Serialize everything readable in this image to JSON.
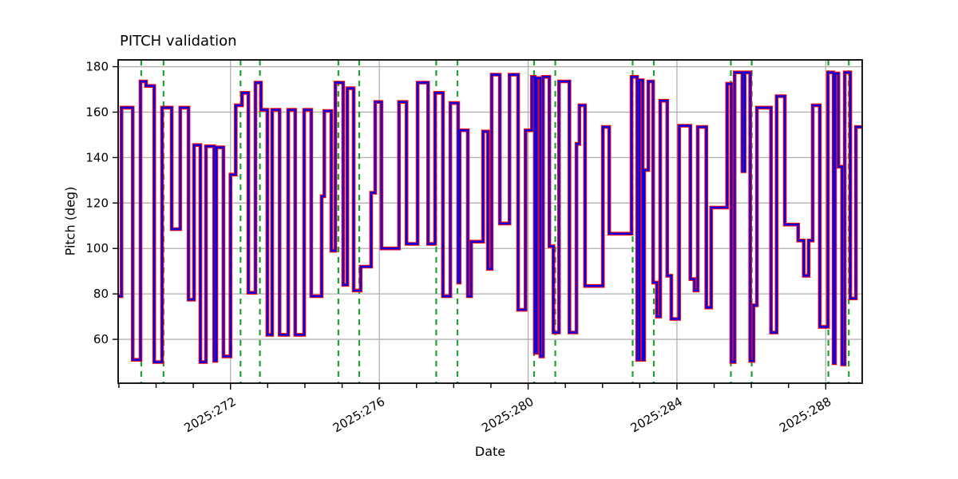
{
  "chart_data": {
    "type": "line",
    "subtype": "step",
    "title": "PITCH validation",
    "xlabel": "Date",
    "ylabel": "Pitch (deg)",
    "x_unit": "2025 day-of-year",
    "xlim": [
      268.98,
      288.98
    ],
    "ylim": [
      40.7,
      183.0
    ],
    "grid": true,
    "legend": "none",
    "x_major_ticks": [
      272,
      276,
      280,
      284,
      288
    ],
    "x_major_tick_labels": [
      "2025:272",
      "2025:276",
      "2025:280",
      "2025:284",
      "2025:288"
    ],
    "x_minor_tick_step": 1,
    "x_tick_label_rotation_deg": 30,
    "y_ticks": [
      60,
      80,
      100,
      120,
      140,
      160,
      180
    ],
    "colors": {
      "grid": "#b0b0b0",
      "frame": "#000000",
      "red_series": "#ff0000",
      "blue_series": "#0000ee",
      "event_marker": "#22a038"
    },
    "series": [
      {
        "id": "red-under",
        "color": "#ff0000",
        "linewidth": 4.6
      },
      {
        "id": "blue-over",
        "color": "#0000ee",
        "linewidth": 2.4
      }
    ],
    "note": "blue series overlays red series with nearly identical values (red visible as outline)",
    "x_end": 288.98,
    "steps": [
      [
        268.98,
        79
      ],
      [
        269.07,
        162
      ],
      [
        269.37,
        51
      ],
      [
        269.58,
        173.5
      ],
      [
        269.73,
        171.5
      ],
      [
        269.95,
        50
      ],
      [
        270.16,
        162
      ],
      [
        270.42,
        108.5
      ],
      [
        270.65,
        162
      ],
      [
        270.87,
        77.5
      ],
      [
        271.02,
        145.5
      ],
      [
        271.19,
        50
      ],
      [
        271.34,
        145
      ],
      [
        271.56,
        50.5
      ],
      [
        271.62,
        144.5
      ],
      [
        271.81,
        52.5
      ],
      [
        272.0,
        132.5
      ],
      [
        272.14,
        163
      ],
      [
        272.31,
        168.5
      ],
      [
        272.48,
        80.5
      ],
      [
        272.67,
        173
      ],
      [
        272.82,
        161
      ],
      [
        272.99,
        62
      ],
      [
        273.12,
        161
      ],
      [
        273.32,
        62
      ],
      [
        273.55,
        161
      ],
      [
        273.74,
        62
      ],
      [
        273.98,
        161
      ],
      [
        274.17,
        79
      ],
      [
        274.45,
        123
      ],
      [
        274.52,
        160.5
      ],
      [
        274.71,
        99
      ],
      [
        274.82,
        173
      ],
      [
        275.03,
        84
      ],
      [
        275.14,
        170.5
      ],
      [
        275.31,
        81.5
      ],
      [
        275.5,
        92
      ],
      [
        275.78,
        124.5
      ],
      [
        275.89,
        164.5
      ],
      [
        276.06,
        100
      ],
      [
        276.53,
        164.5
      ],
      [
        276.73,
        102
      ],
      [
        277.03,
        173
      ],
      [
        277.31,
        102
      ],
      [
        277.5,
        168.5
      ],
      [
        277.71,
        79
      ],
      [
        277.91,
        164
      ],
      [
        278.12,
        85
      ],
      [
        278.16,
        152
      ],
      [
        278.38,
        79
      ],
      [
        278.47,
        103
      ],
      [
        278.79,
        151.5
      ],
      [
        278.92,
        91
      ],
      [
        279.02,
        176.5
      ],
      [
        279.24,
        111
      ],
      [
        279.5,
        176.5
      ],
      [
        279.73,
        73
      ],
      [
        279.93,
        152
      ],
      [
        280.1,
        175.5
      ],
      [
        280.18,
        54
      ],
      [
        280.23,
        175
      ],
      [
        280.33,
        52.5
      ],
      [
        280.4,
        175.5
      ],
      [
        280.57,
        101
      ],
      [
        280.68,
        63
      ],
      [
        280.83,
        173.5
      ],
      [
        281.11,
        63
      ],
      [
        281.3,
        146
      ],
      [
        281.38,
        163
      ],
      [
        281.53,
        83.5
      ],
      [
        282.01,
        153.5
      ],
      [
        282.18,
        106.5
      ],
      [
        282.78,
        175.5
      ],
      [
        282.93,
        51
      ],
      [
        282.99,
        174
      ],
      [
        283.08,
        51
      ],
      [
        283.12,
        134.5
      ],
      [
        283.23,
        173.5
      ],
      [
        283.36,
        85
      ],
      [
        283.46,
        70
      ],
      [
        283.55,
        165
      ],
      [
        283.74,
        88
      ],
      [
        283.85,
        69
      ],
      [
        284.06,
        154
      ],
      [
        284.36,
        86.5
      ],
      [
        284.47,
        81.5
      ],
      [
        284.56,
        153.5
      ],
      [
        284.79,
        74
      ],
      [
        284.92,
        118
      ],
      [
        285.35,
        172.5
      ],
      [
        285.46,
        50
      ],
      [
        285.55,
        177.5
      ],
      [
        285.76,
        134
      ],
      [
        285.82,
        177.5
      ],
      [
        285.97,
        50.5
      ],
      [
        286.06,
        75
      ],
      [
        286.15,
        162
      ],
      [
        286.53,
        63
      ],
      [
        286.68,
        167
      ],
      [
        286.9,
        110.5
      ],
      [
        287.26,
        103.5
      ],
      [
        287.41,
        88
      ],
      [
        287.54,
        103.5
      ],
      [
        287.65,
        163
      ],
      [
        287.84,
        65.5
      ],
      [
        288.06,
        177.5
      ],
      [
        288.21,
        49.5
      ],
      [
        288.25,
        177
      ],
      [
        288.34,
        136
      ],
      [
        288.44,
        49
      ],
      [
        288.51,
        177.5
      ],
      [
        288.66,
        78
      ],
      [
        288.81,
        153.5
      ]
    ],
    "event_markers": {
      "color": "#22a038",
      "style": "dashed",
      "x": [
        269.6,
        270.2,
        272.27,
        272.79,
        274.9,
        275.46,
        277.53,
        278.1,
        280.16,
        280.73,
        282.81,
        283.38,
        285.45,
        286.01,
        288.07,
        288.62
      ]
    }
  }
}
